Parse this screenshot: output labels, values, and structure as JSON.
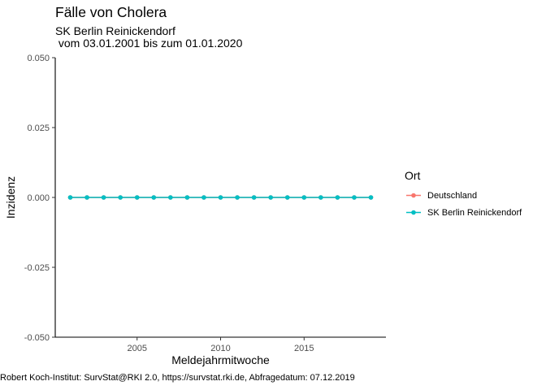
{
  "chart_data": {
    "type": "line",
    "title": "Fälle von Cholera",
    "subtitle": "SK Berlin Reinickendorf\n vom 03.01.2001 bis zum 01.01.2020",
    "xlabel": "Meldejahrmitwoche",
    "ylabel": "Inzidenz",
    "caption": "Robert Koch-Institut: SurvStat@RKI 2.0, https://survstat.rki.de, Abfragedatum: 07.12.2019",
    "xlim": [
      2000.1,
      2019.9
    ],
    "ylim": [
      -0.05,
      0.05
    ],
    "x_ticks": [
      2005,
      2010,
      2015
    ],
    "y_ticks": [
      -0.05,
      -0.025,
      0,
      0.025,
      0.05
    ],
    "y_tick_labels": [
      "-0.050",
      "-0.025",
      "0.000",
      "0.025",
      "0.050"
    ],
    "grid": false,
    "legend": {
      "title": "Ort",
      "position": "right"
    },
    "x": [
      2001,
      2002,
      2003,
      2004,
      2005,
      2006,
      2007,
      2008,
      2009,
      2010,
      2011,
      2012,
      2013,
      2014,
      2015,
      2016,
      2017,
      2018,
      2019
    ],
    "series": [
      {
        "name": "Deutschland",
        "color": "#F8766D",
        "values": [
          0,
          0,
          0,
          0,
          0,
          0,
          0,
          0,
          0,
          0,
          0,
          0,
          0,
          0,
          0,
          0,
          0,
          0,
          0
        ]
      },
      {
        "name": "SK Berlin Reinickendorf",
        "color": "#00BFC4",
        "values": [
          0,
          0,
          0,
          0,
          0,
          0,
          0,
          0,
          0,
          0,
          0,
          0,
          0,
          0,
          0,
          0,
          0,
          0,
          0
        ]
      }
    ]
  }
}
